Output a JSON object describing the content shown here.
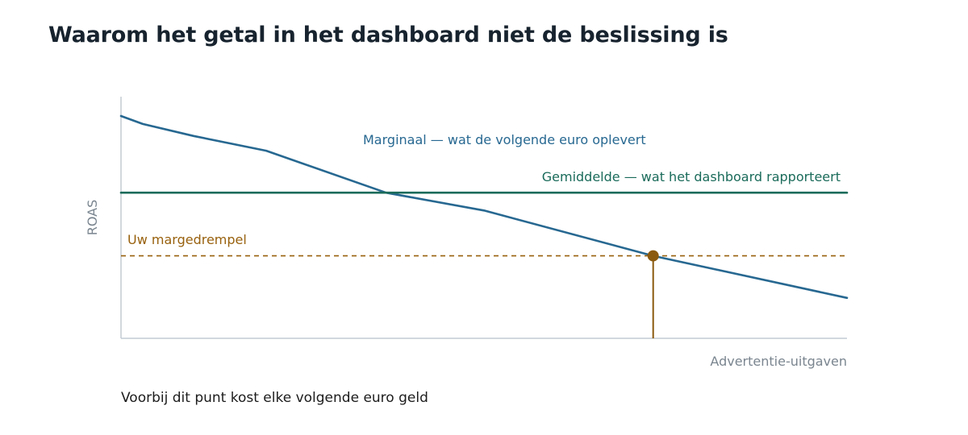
{
  "page": {
    "title": "Waarom het getal in het dashboard niet de beslissing is",
    "caption": "Voorbij dit punt kost elke volgende euro geld"
  },
  "chart_data": {
    "type": "line",
    "title": "Waarom het getal in het dashboard niet de beslissing is",
    "xlabel": "Advertentie-uitgaven",
    "ylabel": "ROAS",
    "xlim": [
      0,
      100
    ],
    "ylim": [
      0,
      100
    ],
    "grid": false,
    "series": [
      {
        "name": "Marginaal — wat de volgende euro oplevert",
        "color": "#276891",
        "style": "solid",
        "x": [
          0,
          3,
          10,
          20,
          36.5,
          50,
          73.3,
          100
        ],
        "y": [
          100,
          96.4,
          91,
          84.4,
          65.5,
          57.5,
          37.1,
          18.2
        ]
      },
      {
        "name": "Gemiddelde — wat het dashboard rapporteert",
        "color": "#1a6b5a",
        "style": "solid",
        "x": [
          0,
          100
        ],
        "y": [
          65.5,
          65.5
        ]
      },
      {
        "name": "Uw margedrempel",
        "color": "#98610e",
        "style": "dashed",
        "x": [
          0,
          100
        ],
        "y": [
          37.1,
          37.1
        ]
      }
    ],
    "annotations": [
      {
        "type": "point",
        "x": 73.3,
        "y": 37.1,
        "color": "#8a5a0f",
        "text": "Voorbij dit punt kost elke volgende euro geld"
      }
    ],
    "colors": {
      "axis": "#c3ccd3",
      "axis_label": "#7a858f"
    }
  }
}
